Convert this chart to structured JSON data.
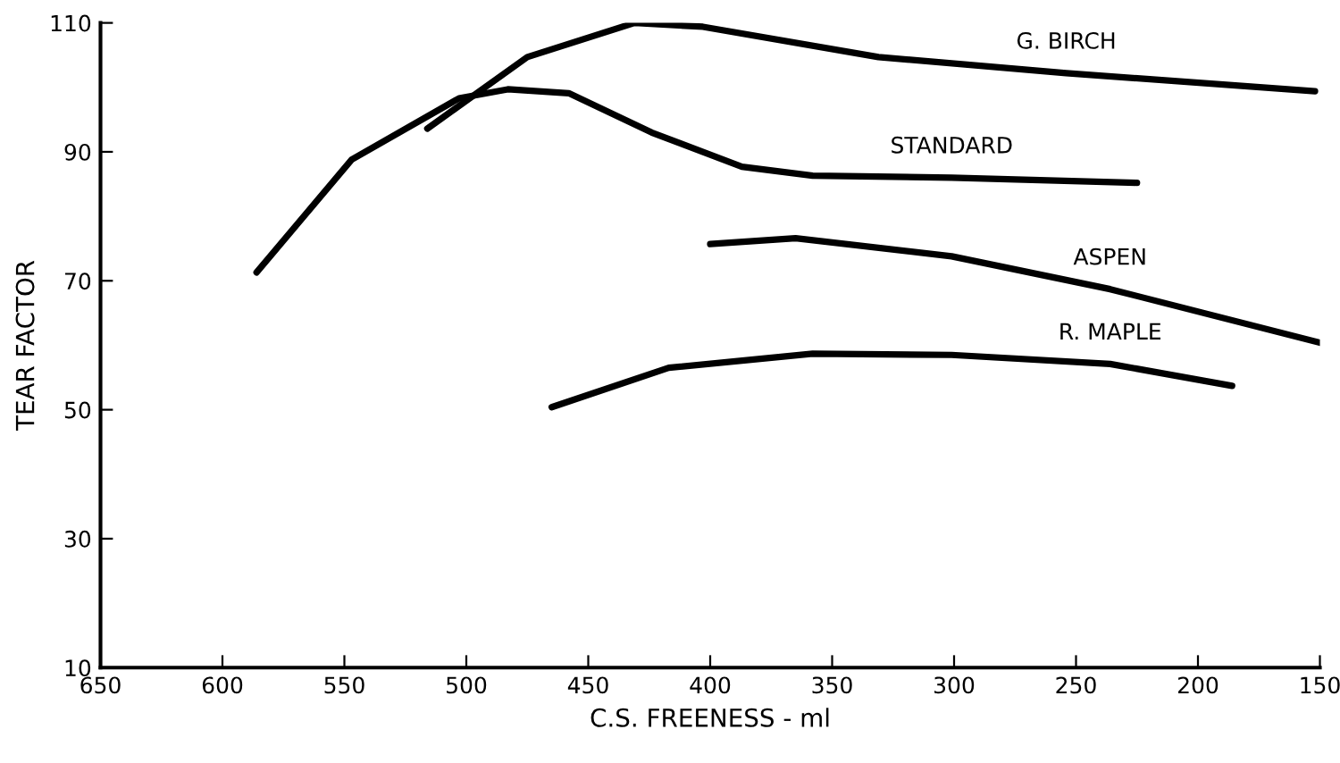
{
  "chart_data": {
    "type": "line",
    "xlabel": "C.S. FREENESS - ml",
    "ylabel": "TEAR FACTOR",
    "xlim": [
      650,
      150
    ],
    "ylim": [
      10,
      110
    ],
    "xticks": [
      650,
      600,
      550,
      500,
      450,
      400,
      350,
      300,
      250,
      200,
      150
    ],
    "yticks": [
      10,
      30,
      50,
      70,
      90,
      110
    ],
    "grid": false,
    "legend": false,
    "marker": "none",
    "line_style": "solid",
    "series": [
      {
        "name": "G. BIRCH",
        "color": "#000000",
        "x": [
          516,
          475,
          431,
          403,
          331,
          254,
          152
        ],
        "values": [
          93.6,
          104.7,
          110,
          109.4,
          104.7,
          102.2,
          99.4
        ]
      },
      {
        "name": "STANDARD",
        "color": "#000000",
        "x": [
          586,
          547,
          503,
          483,
          458,
          424,
          387,
          358,
          301,
          225
        ],
        "values": [
          71.3,
          88.8,
          98.3,
          99.7,
          99.1,
          93,
          87.7,
          86.3,
          86,
          85.2
        ]
      },
      {
        "name": "ASPEN",
        "color": "#000000",
        "x": [
          400,
          365,
          301,
          236,
          150
        ],
        "values": [
          75.7,
          76.6,
          73.8,
          68.7,
          60.4
        ]
      },
      {
        "name": "R. MAPLE",
        "color": "#000000",
        "x": [
          465,
          417,
          358,
          301,
          236,
          186
        ],
        "values": [
          50.4,
          56.5,
          58.7,
          58.5,
          57.1,
          53.7
        ]
      }
    ]
  }
}
